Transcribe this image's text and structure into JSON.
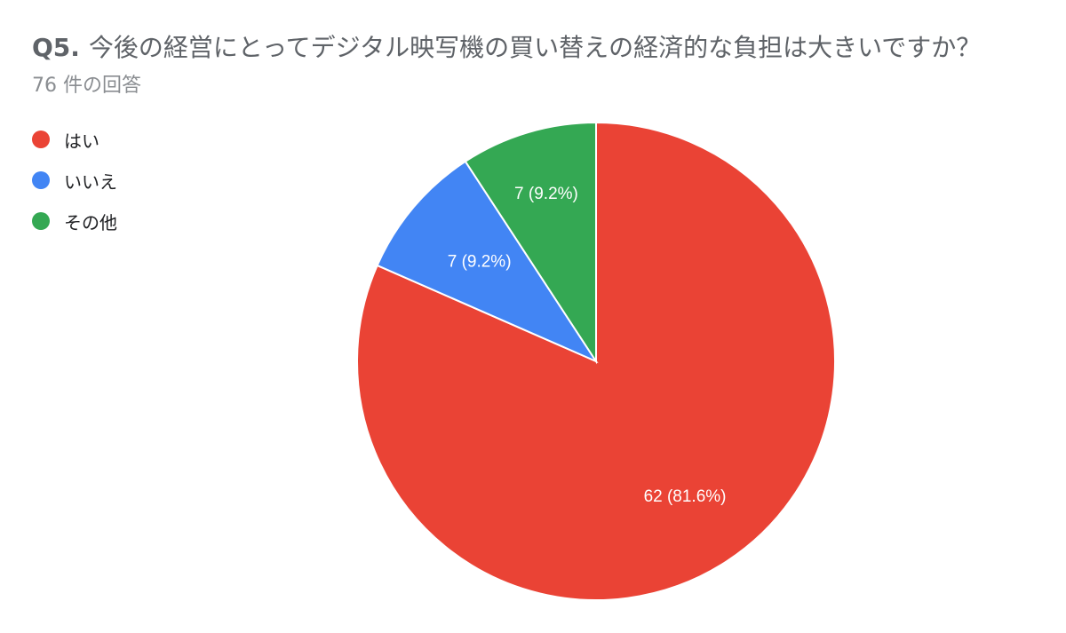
{
  "header": {
    "question_number": "Q5.",
    "question_text": "今後の経営にとってデジタル映写機の買い替えの経済的な負担は大きいですか？",
    "response_count": "76 件の回答"
  },
  "colors": {
    "yes": "#ea4335",
    "no": "#4285f4",
    "other": "#34a853"
  },
  "chart_data": {
    "type": "pie",
    "title": "今後の経営にとってデジタル映写機の買い替えの経済的な負担は大きいですか？",
    "total": 76,
    "legend_position": "left",
    "slices": [
      {
        "label": "はい",
        "value": 62,
        "percent": 81.6,
        "display": "62 (81.6%)",
        "color": "#ea4335"
      },
      {
        "label": "いいえ",
        "value": 7,
        "percent": 9.2,
        "display": "7 (9.2%)",
        "color": "#4285f4"
      },
      {
        "label": "その他",
        "value": 7,
        "percent": 9.2,
        "display": "7 (9.2%)",
        "color": "#34a853"
      }
    ]
  }
}
